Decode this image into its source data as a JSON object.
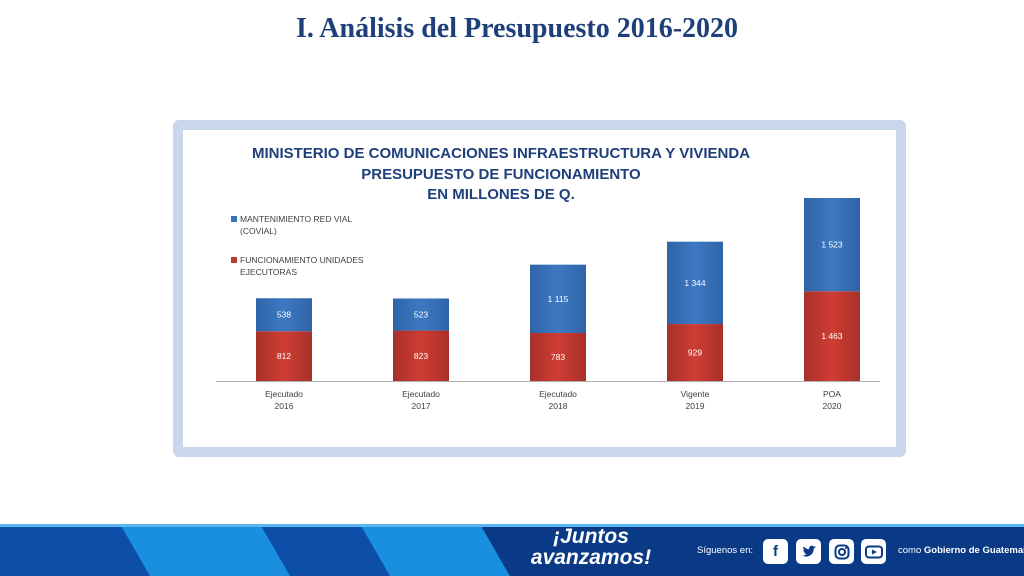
{
  "slide": {
    "title": "I. Análisis del Presupuesto 2016-2020"
  },
  "chart_data": {
    "type": "bar",
    "stacked": true,
    "title_lines": [
      "MINISTERIO DE COMUNICACIONES INFRAESTRUCTURA Y VIVIENDA",
      "PRESUPUESTO DE FUNCIONAMIENTO",
      "EN MILLONES DE Q."
    ],
    "categories": [
      [
        "Ejecutado",
        "2016"
      ],
      [
        "Ejecutado",
        "2017"
      ],
      [
        "Ejecutado",
        "2018"
      ],
      [
        "Vigente",
        "2019"
      ],
      [
        "POA",
        "2020"
      ]
    ],
    "series": [
      {
        "name": "FUNCIONAMIENTO UNIDADES EJECUTORAS",
        "color": "#c0392f",
        "values": [
          812,
          823,
          783,
          929,
          1463
        ],
        "labels": [
          "812",
          "823",
          "783",
          "929",
          "1 463"
        ]
      },
      {
        "name": "MANTENIMIENTO RED VIAL (COVIAL)",
        "color": "#3a72b8",
        "values": [
          538,
          523,
          1115,
          1344,
          1523
        ],
        "labels": [
          "538",
          "523",
          "1 115",
          "1 344",
          "1 523"
        ]
      }
    ],
    "legend_position": "left",
    "grid": false,
    "ylim": [
      0,
      3100
    ]
  },
  "footer": {
    "brand_line1": "¡Juntos",
    "brand_line2": "avanzamos!",
    "follow_text": "Síguenos en:",
    "social_icons": [
      "facebook-icon",
      "twitter-icon",
      "instagram-icon",
      "youtube-icon"
    ],
    "gov_prefix": "como",
    "gov_name": "Gobierno de Guatemala",
    "colors": {
      "primary": "#0a3a86",
      "accent": "#1a8fe0"
    }
  }
}
